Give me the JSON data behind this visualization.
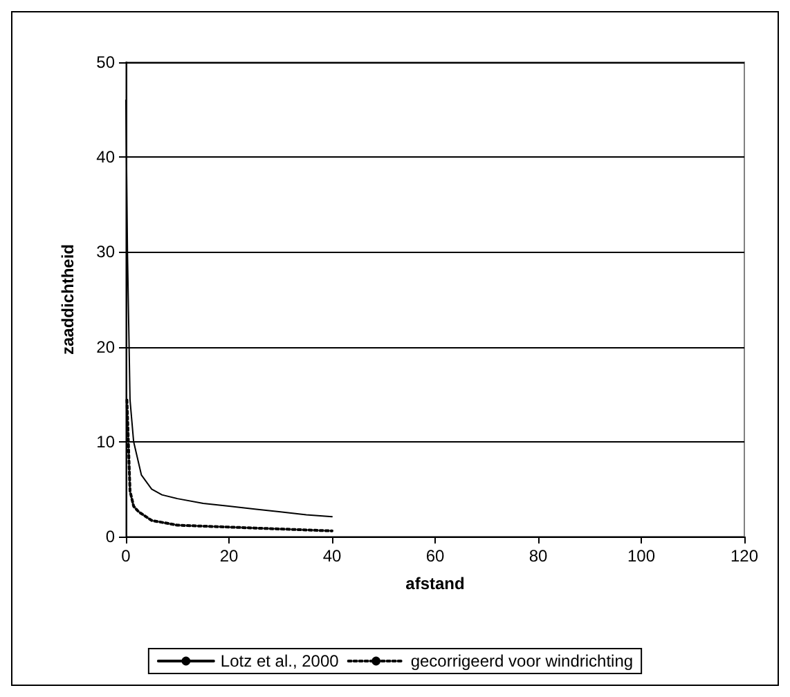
{
  "chart_data": {
    "type": "line",
    "xlabel": "afstand",
    "ylabel": "zaaddichtheid",
    "xlim": [
      0,
      120
    ],
    "xticks": [
      0,
      20,
      40,
      60,
      80,
      100,
      120
    ],
    "ylim": [
      0,
      50
    ],
    "yticks": [
      0,
      10,
      20,
      30,
      40,
      50
    ],
    "grid": "y",
    "legend": "bottom",
    "marker": "none",
    "series": [
      {
        "name": "Lotz et al., 2000",
        "color": "#000000",
        "line_style": "solid",
        "x": [
          0,
          0.3,
          0.8,
          1.5,
          3,
          5,
          7,
          10,
          15,
          20,
          25,
          30,
          35,
          40
        ],
        "values": [
          46,
          30,
          14.4,
          10,
          6.5,
          5,
          4.4,
          4,
          3.5,
          3.2,
          2.9,
          2.6,
          2.3,
          2.1
        ]
      },
      {
        "name": "gecorrigeerd voor windrichting",
        "color": "#000000",
        "line_style": "dotted",
        "x": [
          0.2,
          0.8,
          1.5,
          2.5,
          5,
          10,
          15,
          20,
          25,
          30,
          35,
          40
        ],
        "values": [
          14.4,
          4.8,
          3.2,
          2.6,
          1.7,
          1.2,
          1.1,
          1,
          0.9,
          0.8,
          0.7,
          0.6
        ]
      }
    ]
  }
}
